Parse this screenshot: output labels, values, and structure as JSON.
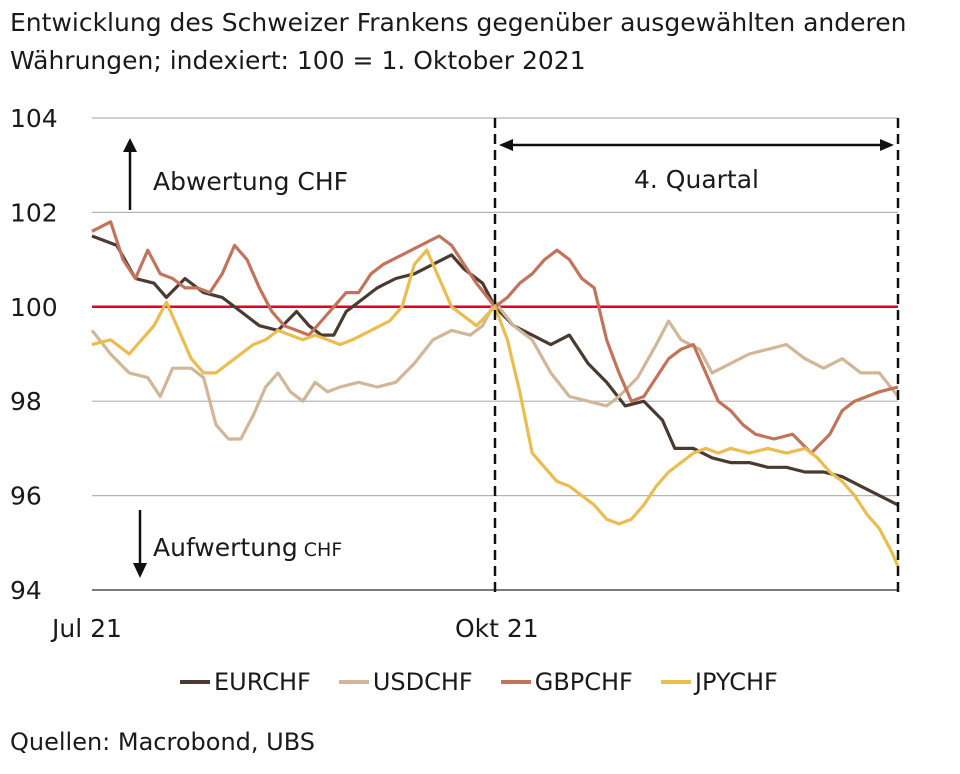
{
  "title_line1": "Entwicklung des Schweizer Frankens gegenüber ausgewählten anderen",
  "title_line2": "Währungen; indexiert: 100 = 1. Oktober 2021",
  "source": "Quellen: Macrobond, UBS",
  "chart_data": {
    "type": "line",
    "ylim": [
      94,
      104
    ],
    "yticks": [
      "104",
      "102",
      "100",
      "98",
      "96",
      "94"
    ],
    "ytick_values": [
      104,
      102,
      100,
      98,
      96,
      94
    ],
    "xlim": [
      0,
      130
    ],
    "xticks": [
      {
        "label": "Jul 21",
        "value": 0
      },
      {
        "label": "Okt 21",
        "value": 65
      }
    ],
    "reference_line": {
      "value": 100,
      "color": "#e3001b"
    },
    "quarter_marker": {
      "label": "4. Quartal",
      "start": 65,
      "end": 130
    },
    "annotations": {
      "up": "Abwertung CHF",
      "down_main": "Aufwertung",
      "down_small": "CHF"
    },
    "legend": [
      "EURCHF",
      "USDCHF",
      "GBPCHF",
      "JPYCHF"
    ],
    "series": [
      {
        "name": "EURCHF",
        "color": "#4a3b32",
        "points": [
          [
            0,
            101.5
          ],
          [
            4,
            101.3
          ],
          [
            7,
            100.6
          ],
          [
            10,
            100.5
          ],
          [
            12,
            100.2
          ],
          [
            15,
            100.6
          ],
          [
            18,
            100.3
          ],
          [
            21,
            100.2
          ],
          [
            24,
            99.9
          ],
          [
            27,
            99.6
          ],
          [
            30,
            99.5
          ],
          [
            33,
            99.9
          ],
          [
            35,
            99.6
          ],
          [
            37,
            99.4
          ],
          [
            39,
            99.4
          ],
          [
            41,
            99.9
          ],
          [
            43,
            100.1
          ],
          [
            46,
            100.4
          ],
          [
            49,
            100.6
          ],
          [
            52,
            100.7
          ],
          [
            55,
            100.9
          ],
          [
            58,
            101.1
          ],
          [
            60,
            100.8
          ],
          [
            63,
            100.5
          ],
          [
            65,
            100.0
          ],
          [
            68,
            99.6
          ],
          [
            71,
            99.4
          ],
          [
            74,
            99.2
          ],
          [
            77,
            99.4
          ],
          [
            80,
            98.8
          ],
          [
            83,
            98.4
          ],
          [
            86,
            97.9
          ],
          [
            89,
            98.0
          ],
          [
            92,
            97.6
          ],
          [
            94,
            97.0
          ],
          [
            97,
            97.0
          ],
          [
            100,
            96.8
          ],
          [
            103,
            96.7
          ],
          [
            106,
            96.7
          ],
          [
            109,
            96.6
          ],
          [
            112,
            96.6
          ],
          [
            115,
            96.5
          ],
          [
            118,
            96.5
          ],
          [
            121,
            96.4
          ],
          [
            124,
            96.2
          ],
          [
            127,
            96.0
          ],
          [
            130,
            95.8
          ]
        ]
      },
      {
        "name": "USDCHF",
        "color": "#d1b797",
        "points": [
          [
            0,
            99.5
          ],
          [
            3,
            99.0
          ],
          [
            6,
            98.6
          ],
          [
            9,
            98.5
          ],
          [
            11,
            98.1
          ],
          [
            13,
            98.7
          ],
          [
            16,
            98.7
          ],
          [
            18,
            98.5
          ],
          [
            20,
            97.5
          ],
          [
            22,
            97.2
          ],
          [
            24,
            97.2
          ],
          [
            26,
            97.7
          ],
          [
            28,
            98.3
          ],
          [
            30,
            98.6
          ],
          [
            32,
            98.2
          ],
          [
            34,
            98.0
          ],
          [
            36,
            98.4
          ],
          [
            38,
            98.2
          ],
          [
            40,
            98.3
          ],
          [
            43,
            98.4
          ],
          [
            46,
            98.3
          ],
          [
            49,
            98.4
          ],
          [
            52,
            98.8
          ],
          [
            55,
            99.3
          ],
          [
            58,
            99.5
          ],
          [
            61,
            99.4
          ],
          [
            63,
            99.6
          ],
          [
            65,
            100.1
          ],
          [
            68,
            99.6
          ],
          [
            71,
            99.3
          ],
          [
            74,
            98.6
          ],
          [
            77,
            98.1
          ],
          [
            80,
            98.0
          ],
          [
            83,
            97.9
          ],
          [
            85,
            98.1
          ],
          [
            88,
            98.5
          ],
          [
            91,
            99.2
          ],
          [
            93,
            99.7
          ],
          [
            95,
            99.3
          ],
          [
            98,
            99.1
          ],
          [
            100,
            98.6
          ],
          [
            103,
            98.8
          ],
          [
            106,
            99.0
          ],
          [
            109,
            99.1
          ],
          [
            112,
            99.2
          ],
          [
            115,
            98.9
          ],
          [
            118,
            98.7
          ],
          [
            121,
            98.9
          ],
          [
            124,
            98.6
          ],
          [
            127,
            98.6
          ],
          [
            130,
            98.1
          ]
        ]
      },
      {
        "name": "GBPCHF",
        "color": "#c4735b",
        "points": [
          [
            0,
            101.6
          ],
          [
            3,
            101.8
          ],
          [
            5,
            101.0
          ],
          [
            7,
            100.6
          ],
          [
            9,
            101.2
          ],
          [
            11,
            100.7
          ],
          [
            13,
            100.6
          ],
          [
            15,
            100.4
          ],
          [
            17,
            100.4
          ],
          [
            19,
            100.3
          ],
          [
            21,
            100.7
          ],
          [
            23,
            101.3
          ],
          [
            25,
            101.0
          ],
          [
            27,
            100.4
          ],
          [
            29,
            99.9
          ],
          [
            31,
            99.6
          ],
          [
            33,
            99.5
          ],
          [
            35,
            99.4
          ],
          [
            37,
            99.7
          ],
          [
            39,
            100.0
          ],
          [
            41,
            100.3
          ],
          [
            43,
            100.3
          ],
          [
            45,
            100.7
          ],
          [
            47,
            100.9
          ],
          [
            50,
            101.1
          ],
          [
            53,
            101.3
          ],
          [
            56,
            101.5
          ],
          [
            58,
            101.3
          ],
          [
            60,
            100.9
          ],
          [
            62,
            100.5
          ],
          [
            65,
            100.0
          ],
          [
            67,
            100.2
          ],
          [
            69,
            100.5
          ],
          [
            71,
            100.7
          ],
          [
            73,
            101.0
          ],
          [
            75,
            101.2
          ],
          [
            77,
            101.0
          ],
          [
            79,
            100.6
          ],
          [
            81,
            100.4
          ],
          [
            83,
            99.3
          ],
          [
            85,
            98.6
          ],
          [
            87,
            98.0
          ],
          [
            89,
            98.1
          ],
          [
            91,
            98.5
          ],
          [
            93,
            98.9
          ],
          [
            95,
            99.1
          ],
          [
            97,
            99.2
          ],
          [
            99,
            98.6
          ],
          [
            101,
            98.0
          ],
          [
            103,
            97.8
          ],
          [
            105,
            97.5
          ],
          [
            107,
            97.3
          ],
          [
            110,
            97.2
          ],
          [
            113,
            97.3
          ],
          [
            116,
            96.9
          ],
          [
            119,
            97.3
          ],
          [
            121,
            97.8
          ],
          [
            123,
            98.0
          ],
          [
            125,
            98.1
          ],
          [
            127,
            98.2
          ],
          [
            130,
            98.3
          ]
        ]
      },
      {
        "name": "JPYCHF",
        "color": "#ebbd4f",
        "points": [
          [
            0,
            99.2
          ],
          [
            3,
            99.3
          ],
          [
            6,
            99.0
          ],
          [
            8,
            99.3
          ],
          [
            10,
            99.6
          ],
          [
            12,
            100.1
          ],
          [
            14,
            99.5
          ],
          [
            16,
            98.9
          ],
          [
            18,
            98.6
          ],
          [
            20,
            98.6
          ],
          [
            22,
            98.8
          ],
          [
            24,
            99.0
          ],
          [
            26,
            99.2
          ],
          [
            28,
            99.3
          ],
          [
            30,
            99.5
          ],
          [
            32,
            99.4
          ],
          [
            34,
            99.3
          ],
          [
            36,
            99.4
          ],
          [
            38,
            99.3
          ],
          [
            40,
            99.2
          ],
          [
            42,
            99.3
          ],
          [
            45,
            99.5
          ],
          [
            48,
            99.7
          ],
          [
            50,
            100.0
          ],
          [
            52,
            100.9
          ],
          [
            54,
            101.2
          ],
          [
            56,
            100.6
          ],
          [
            58,
            100.0
          ],
          [
            60,
            99.8
          ],
          [
            62,
            99.6
          ],
          [
            65,
            100.0
          ],
          [
            67,
            99.3
          ],
          [
            69,
            98.2
          ],
          [
            71,
            96.9
          ],
          [
            73,
            96.6
          ],
          [
            75,
            96.3
          ],
          [
            77,
            96.2
          ],
          [
            79,
            96.0
          ],
          [
            81,
            95.8
          ],
          [
            83,
            95.5
          ],
          [
            85,
            95.4
          ],
          [
            87,
            95.5
          ],
          [
            89,
            95.8
          ],
          [
            91,
            96.2
          ],
          [
            93,
            96.5
          ],
          [
            95,
            96.7
          ],
          [
            97,
            96.9
          ],
          [
            99,
            97.0
          ],
          [
            101,
            96.9
          ],
          [
            103,
            97.0
          ],
          [
            106,
            96.9
          ],
          [
            109,
            97.0
          ],
          [
            112,
            96.9
          ],
          [
            115,
            97.0
          ],
          [
            117,
            96.8
          ],
          [
            119,
            96.5
          ],
          [
            121,
            96.3
          ],
          [
            123,
            96.0
          ],
          [
            125,
            95.6
          ],
          [
            127,
            95.3
          ],
          [
            129,
            94.8
          ],
          [
            130,
            94.5
          ]
        ]
      }
    ]
  }
}
